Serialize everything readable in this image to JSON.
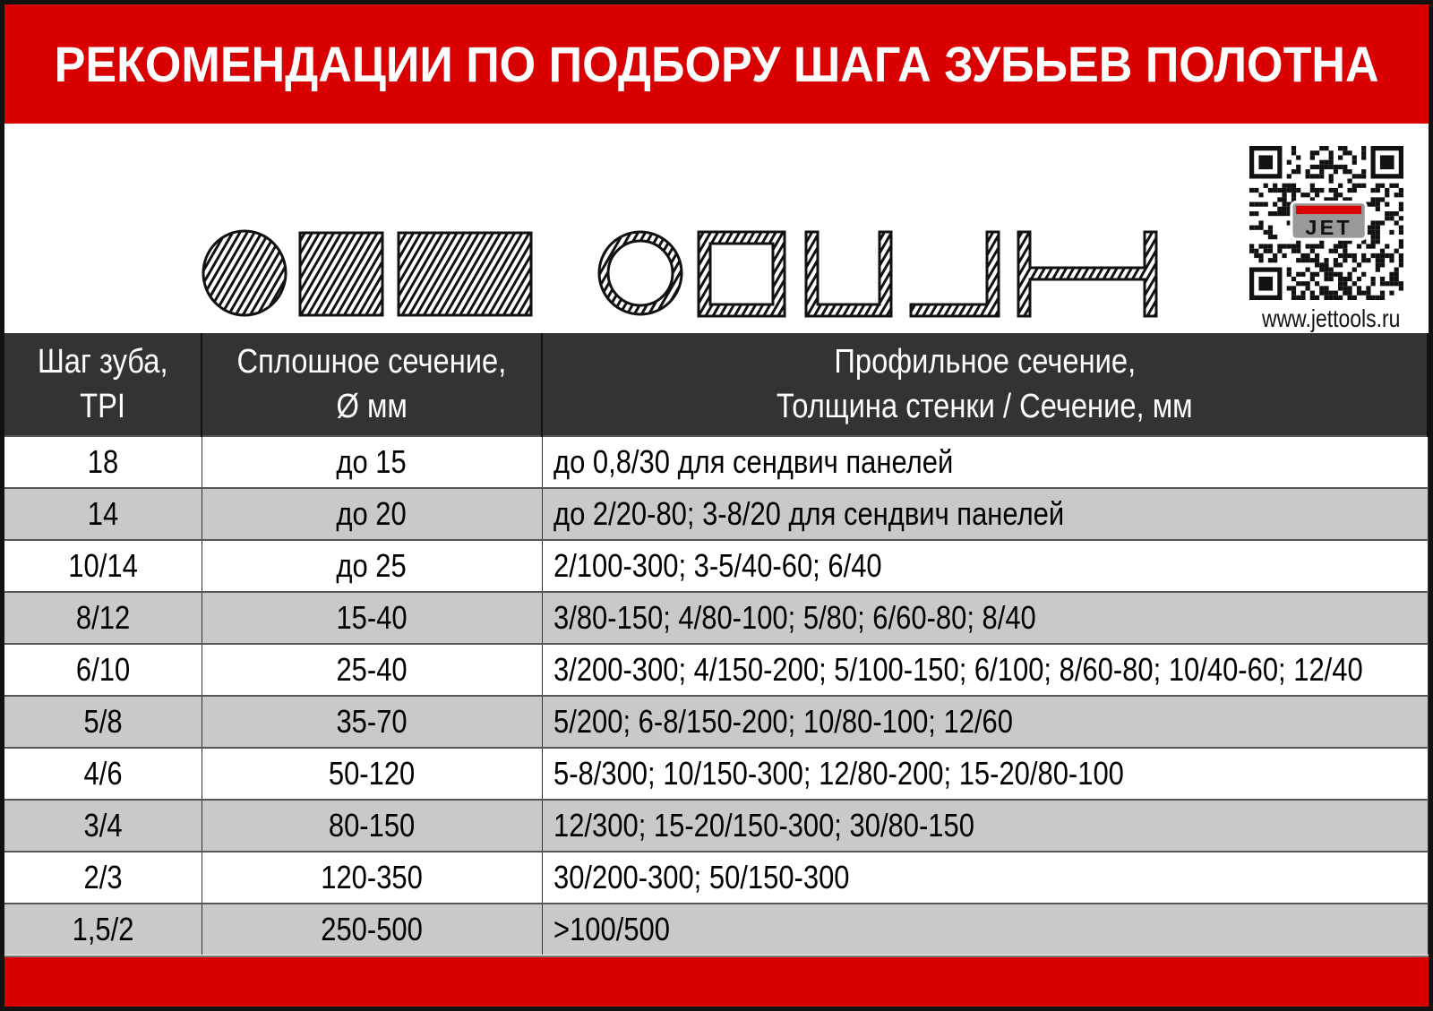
{
  "title": "РЕКОМЕНДАЦИИ ПО ПОДБОРУ ШАГА ЗУБЬЕВ ПОЛОТНА",
  "website": "www.jettools.ru",
  "logo_text": "JET",
  "colors": {
    "banner": "#d80000",
    "header_bg": "#333333",
    "alt_row": "#c9c9c9"
  },
  "section_icons": [
    "solid-round-icon",
    "solid-square-icon",
    "solid-rectangle-icon",
    "round-tube-icon",
    "square-tube-icon",
    "channel-icon",
    "angle-icon",
    "i-beam-icon"
  ],
  "table": {
    "headers": [
      [
        "Шаг зуба,",
        "TPI"
      ],
      [
        "Сплошное сечение,",
        "Ø мм"
      ],
      [
        "Профильное сечение,",
        "Толщина стенки / Сечение, мм"
      ]
    ],
    "rows": [
      [
        "18",
        "до 15",
        "до 0,8/30 для сендвич панелей"
      ],
      [
        "14",
        "до 20",
        "до 2/20-80; 3-8/20 для сендвич панелей"
      ],
      [
        "10/14",
        "до 25",
        "2/100-300; 3-5/40-60;  6/40"
      ],
      [
        "8/12",
        "15-40",
        "3/80-150; 4/80-100; 5/80; 6/60-80; 8/40"
      ],
      [
        "6/10",
        "25-40",
        "3/200-300; 4/150-200; 5/100-150; 6/100; 8/60-80; 10/40-60; 12/40"
      ],
      [
        "5/8",
        "35-70",
        "5/200; 6-8/150-200; 10/80-100; 12/60"
      ],
      [
        "4/6",
        "50-120",
        "5-8/300; 10/150-300; 12/80-200; 15-20/80-100"
      ],
      [
        "3/4",
        "80-150",
        "12/300; 15-20/150-300; 30/80-150"
      ],
      [
        "2/3",
        "120-350",
        "30/200-300; 50/150-300"
      ],
      [
        "1,5/2",
        "250-500",
        ">100/500"
      ]
    ]
  }
}
